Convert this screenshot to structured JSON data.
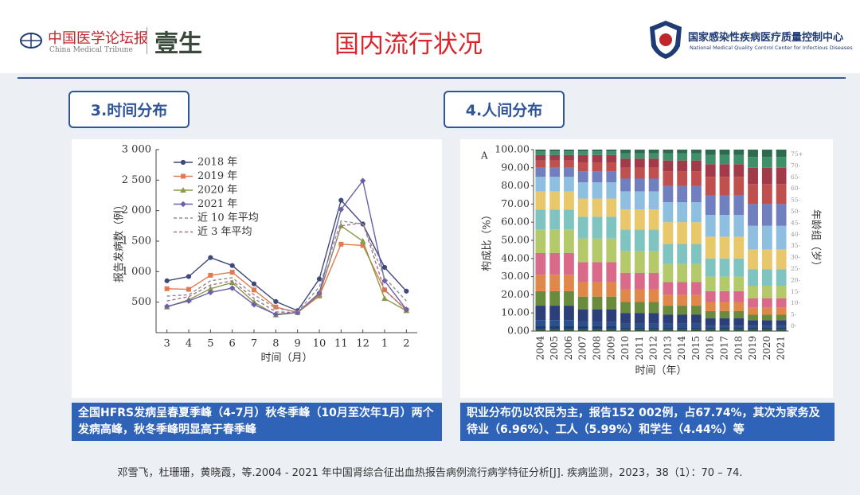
{
  "header": {
    "title": "国内流行状况",
    "left_logo": {
      "name": "中国医学论坛报",
      "english": "China Medical Tribune",
      "brand": "壹生"
    },
    "right_logo": {
      "name": "国家感染性疾病医疗质量控制中心",
      "english": "National Medical Quality Control Center for Infectious Diseases"
    }
  },
  "sections": [
    {
      "label": "3.时间分布",
      "caption": "全国HFRS发病呈春夏季峰（4-7月）秋冬季峰（10月至次年1月）两个发病高峰，秋冬季峰明显高于春季峰"
    },
    {
      "label": "4.人间分布",
      "caption": "职业分布仍以农民为主，报告152 002例，占67.74%，其次为家务及待业（6.96%）、工人（5.99%）和学生（4.44%）等"
    }
  ],
  "citation": "邓雪飞，杜珊珊，黄晓霞，等.2004 - 2021 年中国肾综合征出血热报告病例流行病学特征分析[J]. 疾病监测，2023，38（1）：70 – 74.",
  "chart_data": [
    {
      "type": "line",
      "xlabel": "时间（月）",
      "ylabel": "报告发病数（例）",
      "categories": [
        "3",
        "4",
        "5",
        "6",
        "7",
        "8",
        "9",
        "10",
        "11",
        "12",
        "1",
        "2"
      ],
      "ylim": [
        0,
        3000
      ],
      "yticks": [
        500,
        {
          "value": 1000,
          "label": "1 000"
        },
        {
          "value": 1500,
          "label": "1 500"
        },
        {
          "value": 2000,
          "label": "2 000"
        },
        {
          "value": 2500,
          "label": "2 500"
        },
        {
          "value": 3000,
          "label": "3 000"
        }
      ],
      "series": [
        {
          "name": "2018 年",
          "color": "#3e4a7a",
          "marker": "circle",
          "values": [
            850,
            920,
            1230,
            1100,
            800,
            510,
            360,
            880,
            2170,
            1780,
            1070,
            680
          ]
        },
        {
          "name": "2019 年",
          "color": "#e07b4f",
          "marker": "square",
          "values": [
            720,
            710,
            940,
            990,
            700,
            420,
            330,
            600,
            1450,
            1430,
            700,
            370
          ]
        },
        {
          "name": "2020 年",
          "color": "#8a9a4a",
          "marker": "triangle",
          "values": [
            420,
            540,
            720,
            820,
            500,
            290,
            330,
            620,
            1750,
            1500,
            560,
            360
          ]
        },
        {
          "name": "2021 年",
          "color": "#6b5fa8",
          "marker": "diamond",
          "values": [
            430,
            520,
            660,
            730,
            460,
            300,
            330,
            650,
            2020,
            2490,
            850,
            380
          ]
        },
        {
          "name": "近 10 年平均",
          "color": "#8f8f8f",
          "linestyle": "dashed",
          "values": [
            600,
            620,
            850,
            900,
            620,
            400,
            340,
            750,
            1830,
            1780,
            900,
            520
          ]
        },
        {
          "name": "近 3 年平均",
          "color": "#a0708c",
          "linestyle": "dashed",
          "values": [
            520,
            590,
            780,
            850,
            560,
            340,
            330,
            630,
            1750,
            1800,
            700,
            370
          ]
        }
      ]
    },
    {
      "type": "stacked_bar",
      "panel_label": "A",
      "xlabel": "时间（年）",
      "ylabel": "构成比（%）",
      "y2label": "年龄组（岁）",
      "categories": [
        "2004",
        "2005",
        "2006",
        "2007",
        "2008",
        "2009",
        "2010",
        "2011",
        "2012",
        "2013",
        "2014",
        "2015",
        "2016",
        "2017",
        "2018",
        "2019",
        "2020",
        "2021"
      ],
      "ylim": [
        0,
        100
      ],
      "yticks": [
        {
          "value": 0,
          "label": "0.00"
        },
        {
          "value": 10,
          "label": "10.00"
        },
        {
          "value": 20,
          "label": "20.00"
        },
        {
          "value": 30,
          "label": "30.00"
        },
        {
          "value": 40,
          "label": "40.00"
        },
        {
          "value": 50,
          "label": "50.00"
        },
        {
          "value": 60,
          "label": "60.00"
        },
        {
          "value": 70,
          "label": "70.00"
        },
        {
          "value": 80,
          "label": "80.00"
        },
        {
          "value": 90,
          "label": "90.00"
        },
        {
          "value": 100,
          "label": "100.00"
        }
      ],
      "series": [
        {
          "name": "0-",
          "color": "#2f5d3a",
          "values": [
            1,
            1,
            1,
            1,
            1,
            1,
            1,
            1,
            1,
            1,
            1,
            1,
            1,
            1,
            1,
            1,
            1,
            1
          ]
        },
        {
          "name": "5-",
          "color": "#1f3b73",
          "values": [
            2,
            2,
            2,
            2,
            2,
            2,
            1,
            1,
            1,
            1,
            1,
            1,
            1,
            1,
            1,
            1,
            1,
            1
          ]
        },
        {
          "name": "10-",
          "color": "#2a4f8f",
          "values": [
            3,
            3,
            3,
            2,
            2,
            2,
            2,
            2,
            2,
            2,
            2,
            2,
            1,
            1,
            1,
            1,
            1,
            1
          ]
        },
        {
          "name": "15-",
          "color": "#2c3f78",
          "values": [
            8,
            8,
            8,
            7,
            7,
            7,
            6,
            6,
            6,
            5,
            5,
            5,
            4,
            4,
            4,
            3,
            3,
            3
          ]
        },
        {
          "name": "20-",
          "color": "#6a8a3c",
          "values": [
            8,
            8,
            8,
            7,
            7,
            7,
            6,
            6,
            6,
            5,
            5,
            5,
            4,
            4,
            4,
            3,
            3,
            3
          ]
        },
        {
          "name": "25-",
          "color": "#e0874a",
          "values": [
            9,
            9,
            9,
            8,
            8,
            8,
            7,
            7,
            7,
            6,
            6,
            6,
            5,
            5,
            5,
            4,
            4,
            4
          ]
        },
        {
          "name": "30-",
          "color": "#d96a8a",
          "values": [
            12,
            12,
            12,
            11,
            11,
            11,
            9,
            9,
            9,
            7,
            7,
            7,
            6,
            6,
            6,
            5,
            5,
            5
          ]
        },
        {
          "name": "35-",
          "color": "#b4c96a",
          "values": [
            13,
            13,
            13,
            13,
            13,
            13,
            12,
            12,
            12,
            10,
            10,
            10,
            8,
            8,
            8,
            7,
            7,
            7
          ]
        },
        {
          "name": "40-",
          "color": "#7fc4c0",
          "values": [
            11,
            11,
            11,
            12,
            12,
            12,
            12,
            12,
            12,
            11,
            11,
            11,
            10,
            10,
            10,
            9,
            9,
            9
          ]
        },
        {
          "name": "45-",
          "color": "#e8c86a",
          "values": [
            10,
            10,
            10,
            10,
            10,
            10,
            11,
            11,
            11,
            12,
            12,
            12,
            12,
            12,
            12,
            11,
            11,
            11
          ]
        },
        {
          "name": "50-",
          "color": "#8fbfe0",
          "values": [
            8,
            8,
            8,
            9,
            9,
            9,
            10,
            10,
            10,
            11,
            11,
            11,
            12,
            12,
            12,
            13,
            13,
            13
          ]
        },
        {
          "name": "55-",
          "color": "#6f7fc0",
          "values": [
            5,
            5,
            5,
            6,
            6,
            6,
            7,
            7,
            7,
            9,
            9,
            9,
            11,
            11,
            11,
            12,
            12,
            12
          ]
        },
        {
          "name": "60-",
          "color": "#c0504d",
          "values": [
            4,
            4,
            4,
            5,
            5,
            5,
            6,
            6,
            6,
            8,
            8,
            8,
            10,
            10,
            10,
            11,
            11,
            11
          ]
        },
        {
          "name": "65-",
          "color": "#a23a4a",
          "values": [
            3,
            3,
            3,
            4,
            4,
            4,
            5,
            5,
            5,
            6,
            6,
            6,
            7,
            7,
            7,
            9,
            9,
            9
          ]
        },
        {
          "name": "70-",
          "color": "#3f8f6a",
          "values": [
            2,
            2,
            2,
            2,
            2,
            2,
            3,
            3,
            3,
            4,
            4,
            4,
            5,
            5,
            5,
            6,
            6,
            6
          ]
        },
        {
          "name": "75+",
          "color": "#2d6a4f",
          "values": [
            1,
            1,
            1,
            1,
            1,
            1,
            2,
            2,
            2,
            2,
            2,
            2,
            3,
            3,
            3,
            4,
            4,
            4
          ]
        }
      ]
    }
  ]
}
